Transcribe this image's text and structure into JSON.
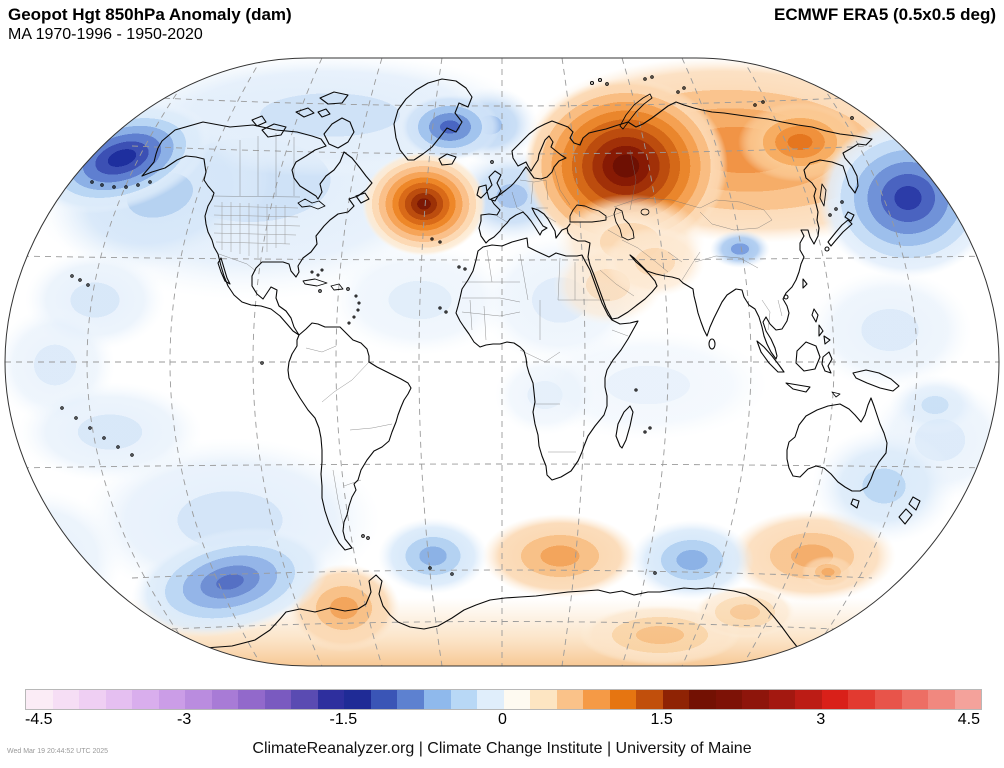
{
  "header": {
    "title": "Geopot Hgt 850hPa Anomaly (dam)",
    "subtitle": "MA 1970-1996 - 1950-2020",
    "dataset": "ECMWF ERA5 (0.5x0.5 deg)"
  },
  "colorbar": {
    "min": -4.5,
    "max": 4.5,
    "step": 0.25,
    "ticks": [
      "-4.5",
      "-3",
      "-1.5",
      "0",
      "1.5",
      "3",
      "4.5"
    ],
    "colors": [
      "#fbecf6",
      "#f6def5",
      "#efcff3",
      "#e5bff1",
      "#d9aeed",
      "#cb9de7",
      "#ba8cdf",
      "#a87bd6",
      "#9269cb",
      "#7a5ac0",
      "#5a4bb2",
      "#2e2f9e",
      "#1f2b96",
      "#3a55b6",
      "#5d81d0",
      "#8fb9ec",
      "#b8d8f6",
      "#e0eefb",
      "#fefaf1",
      "#fde5c2",
      "#fac289",
      "#f59a46",
      "#e67511",
      "#c14f0c",
      "#8f2304",
      "#731103",
      "#7d1206",
      "#8e150b",
      "#a31810",
      "#bc1c15",
      "#d92019",
      "#e23a30",
      "#e8544a",
      "#ed6e64",
      "#f1887f",
      "#f4a29b"
    ]
  },
  "footer": {
    "credit": "ClimateReanalyzer.org | Climate Change Institute | University of Maine",
    "timestamp": "Wed Mar 19 20:44:52 UTC 2025"
  },
  "chart_data": {
    "type": "heatmap",
    "title": "Geopot Hgt 850hPa Anomaly (dam)",
    "subtitle": "MA 1970-1996 - 1950-2020",
    "dataset": "ECMWF ERA5 (0.5x0.5 deg)",
    "units": "dam",
    "projection": "winkel-tripel world map, dashed 30-degree graticule",
    "colorbar_range": [
      -4.5,
      4.5
    ],
    "anomaly_centers": [
      {
        "region": "Northwest Russia / Urals",
        "sign": "positive",
        "peak_dam": 2.0
      },
      {
        "region": "Central North Atlantic south of Greenland",
        "sign": "positive",
        "peak_dam": 1.8
      },
      {
        "region": "Northeast Siberia / Chukotka",
        "sign": "positive",
        "peak_dam": 1.2
      },
      {
        "region": "Bering Sea / Aleutians",
        "sign": "negative",
        "peak_dam": -1.7
      },
      {
        "region": "Central North Pacific near date line",
        "sign": "negative",
        "peak_dam": -1.4
      },
      {
        "region": "Baffin Bay / Greenland",
        "sign": "negative",
        "peak_dam": -1.0
      },
      {
        "region": "Tibetan Plateau",
        "sign": "negative",
        "peak_dam": -0.8
      },
      {
        "region": "Southeast Pacific west of Chile",
        "sign": "negative",
        "peak_dam": -1.1
      },
      {
        "region": "South Atlantic east of Argentina",
        "sign": "negative",
        "peak_dam": -0.7
      },
      {
        "region": "South Indian Ocean / Antarctic coastal band",
        "sign": "positive",
        "peak_dam": 0.8
      },
      {
        "region": "Ocean south of Australia",
        "sign": "positive",
        "peak_dam": 0.7
      },
      {
        "region": "Antarctic Peninsula / Weddell Sea",
        "sign": "positive",
        "peak_dam": 0.9
      }
    ]
  }
}
